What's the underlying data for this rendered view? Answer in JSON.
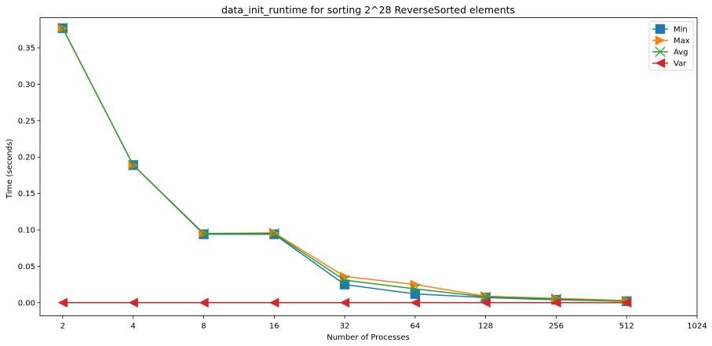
{
  "chart_data": {
    "type": "line",
    "title": "data_init_runtime for sorting 2^28 ReverseSorted elements",
    "xlabel": "Number of Processes",
    "ylabel": "Time (seconds)",
    "x_scale": "log2",
    "x": [
      2,
      4,
      8,
      16,
      32,
      64,
      128,
      256,
      512
    ],
    "xticks": [
      "2",
      "4",
      "8",
      "16",
      "32",
      "64",
      "128",
      "256",
      "512",
      "1024"
    ],
    "xtick_values": [
      2,
      4,
      8,
      16,
      32,
      64,
      128,
      256,
      512,
      1024
    ],
    "xlim": [
      1.6,
      1024
    ],
    "ylim": [
      -0.018,
      0.3915
    ],
    "yticks": [
      "0.00",
      "0.05",
      "0.10",
      "0.15",
      "0.20",
      "0.25",
      "0.30",
      "0.35"
    ],
    "ytick_values": [
      0,
      0.05,
      0.1,
      0.15,
      0.2,
      0.25,
      0.3,
      0.35
    ],
    "grid": false,
    "legend_position": "top-right",
    "series": [
      {
        "name": "Min",
        "color": "#1f77b4",
        "marker": "square",
        "values": [
          0.377,
          0.189,
          0.094,
          0.094,
          0.025,
          0.012,
          0.007,
          0.004,
          0.002
        ]
      },
      {
        "name": "Max",
        "color": "#ff7f0e",
        "marker": "triangle-right",
        "values": [
          0.377,
          0.189,
          0.095,
          0.096,
          0.036,
          0.025,
          0.009,
          0.006,
          0.003
        ]
      },
      {
        "name": "Avg",
        "color": "#2ca02c",
        "marker": "x",
        "values": [
          0.377,
          0.189,
          0.095,
          0.095,
          0.031,
          0.019,
          0.008,
          0.005,
          0.002
        ]
      },
      {
        "name": "Var",
        "color": "#d62728",
        "marker": "triangle-left",
        "values": [
          0.0,
          0.0,
          0.0,
          0.0,
          0.0,
          0.0,
          0.0,
          0.0,
          0.0
        ]
      }
    ]
  }
}
